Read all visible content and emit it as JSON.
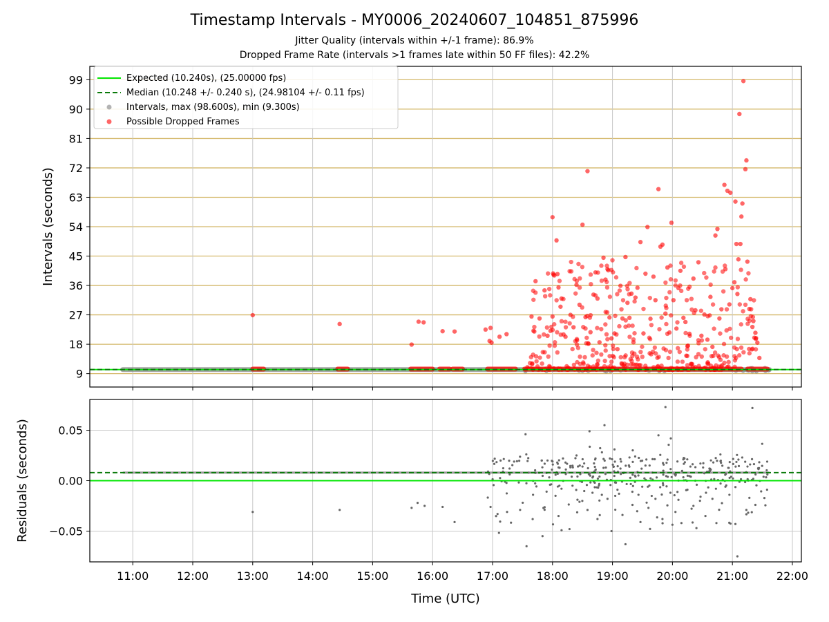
{
  "chart_data": {
    "type": "scatter",
    "title": "Timestamp Intervals - MY0006_20240607_104851_875996",
    "subtitle_1": "Jitter Quality (intervals within +/-1 frame): 86.9%",
    "subtitle_2": "Dropped Frame Rate (intervals >1 frames late within 50 FF files): 42.2%",
    "xlabel": "Time (UTC)",
    "xticks": [
      "11:00",
      "12:00",
      "13:00",
      "14:00",
      "15:00",
      "16:00",
      "17:00",
      "18:00",
      "19:00",
      "20:00",
      "21:00",
      "22:00"
    ],
    "xlim": [
      "10:17",
      "22:09"
    ],
    "grid": true,
    "panels": [
      {
        "name": "intervals",
        "ylabel": "Intervals (seconds)",
        "ylim": [
          4.9,
          103.1
        ],
        "yticks": [
          9,
          18,
          27,
          36,
          45,
          54,
          63,
          72,
          81,
          90,
          99
        ],
        "legend_position": "top-left",
        "legend": [
          "Expected (10.240s), (25.00000 fps)",
          "Median (10.248 +/- 0.240 s), (24.98104 +/- 0.11 fps)",
          "Intervals, max (98.600s), min (9.300s)",
          "Possible Dropped Frames"
        ],
        "expected_interval": 10.24,
        "median_interval": 10.248,
        "interval_max": 98.6,
        "interval_min": 9.3,
        "normal_intervals_range": [
          "10:50",
          "21:37"
        ],
        "dropped_frames": [
          {
            "time": "13:00",
            "value": 26.9
          },
          {
            "time": "14:27",
            "value": 24.2
          },
          {
            "time": "15:39",
            "value": 17.9
          },
          {
            "time": "15:46",
            "value": 24.9
          },
          {
            "time": "15:51",
            "value": 24.7
          },
          {
            "time": "16:10",
            "value": 22.0
          },
          {
            "time": "16:22",
            "value": 21.9
          },
          {
            "time": "16:53",
            "value": 22.5
          },
          {
            "time": "16:58",
            "value": 23.0
          },
          {
            "time": "16:57",
            "value": 19.0
          },
          {
            "time": "16:59",
            "value": 18.5
          },
          {
            "time": "17:07",
            "value": 20.3
          },
          {
            "time": "17:14",
            "value": 21.1
          },
          {
            "time": "17:39",
            "value": 26.5
          },
          {
            "time": "17:43",
            "value": 37.3
          },
          {
            "time": "17:47",
            "value": 25.9
          },
          {
            "time": "17:52",
            "value": 34.5
          },
          {
            "time": "17:55",
            "value": 20.6
          },
          {
            "time": "17:58",
            "value": 22.1
          },
          {
            "time": "18:00",
            "value": 56.9
          },
          {
            "time": "18:01",
            "value": 39.3
          },
          {
            "time": "18:00",
            "value": 26.5
          },
          {
            "time": "18:04",
            "value": 49.8
          },
          {
            "time": "18:05",
            "value": 39.5
          },
          {
            "time": "18:06",
            "value": 35.4
          },
          {
            "time": "18:08",
            "value": 29.5
          },
          {
            "time": "18:09",
            "value": 32.0
          },
          {
            "time": "18:11",
            "value": 21.0
          },
          {
            "time": "18:13",
            "value": 20.3
          },
          {
            "time": "18:18",
            "value": 27.0
          },
          {
            "time": "18:21",
            "value": 23.2
          },
          {
            "time": "18:24",
            "value": 36.2
          },
          {
            "time": "18:27",
            "value": 30.1
          },
          {
            "time": "18:30",
            "value": 54.6
          },
          {
            "time": "18:33",
            "value": 26.3
          },
          {
            "time": "18:35",
            "value": 71.0
          },
          {
            "time": "18:38",
            "value": 21.7
          },
          {
            "time": "18:41",
            "value": 33.2
          },
          {
            "time": "18:43",
            "value": 40.0
          },
          {
            "time": "18:45",
            "value": 32.0
          },
          {
            "time": "18:47",
            "value": 18.6
          },
          {
            "time": "18:51",
            "value": 44.5
          },
          {
            "time": "18:53",
            "value": 37.8
          },
          {
            "time": "18:55",
            "value": 41.0
          },
          {
            "time": "18:57",
            "value": 26.2
          },
          {
            "time": "18:59",
            "value": 19.8
          },
          {
            "time": "19:02",
            "value": 21.3
          },
          {
            "time": "19:05",
            "value": 16.5
          },
          {
            "time": "19:08",
            "value": 35.9
          },
          {
            "time": "19:10",
            "value": 25.9
          },
          {
            "time": "19:13",
            "value": 44.7
          },
          {
            "time": "19:15",
            "value": 30.7
          },
          {
            "time": "19:17",
            "value": 26.1
          },
          {
            "time": "19:19",
            "value": 33.5
          },
          {
            "time": "19:21",
            "value": 18.6
          },
          {
            "time": "19:23",
            "value": 32.3
          },
          {
            "time": "19:25",
            "value": 35.3
          },
          {
            "time": "19:28",
            "value": 49.3
          },
          {
            "time": "19:31",
            "value": 21.3
          },
          {
            "time": "19:33",
            "value": 39.6
          },
          {
            "time": "19:35",
            "value": 53.9
          },
          {
            "time": "19:38",
            "value": 25.8
          },
          {
            "time": "19:41",
            "value": 38.7
          },
          {
            "time": "19:43",
            "value": 31.5
          },
          {
            "time": "19:46",
            "value": 65.5
          },
          {
            "time": "19:48",
            "value": 47.9
          },
          {
            "time": "19:50",
            "value": 48.5
          },
          {
            "time": "19:53",
            "value": 27.4
          },
          {
            "time": "19:55",
            "value": 41.5
          },
          {
            "time": "19:57",
            "value": 21.6
          },
          {
            "time": "19:59",
            "value": 55.2
          },
          {
            "time": "20:01",
            "value": 31.5
          },
          {
            "time": "20:04",
            "value": 22.8
          },
          {
            "time": "20:06",
            "value": 35.2
          },
          {
            "time": "20:08",
            "value": 40.5
          },
          {
            "time": "20:11",
            "value": 26.1
          },
          {
            "time": "20:13",
            "value": 24.8
          },
          {
            "time": "20:15",
            "value": 17.4
          },
          {
            "time": "20:17",
            "value": 21.2
          },
          {
            "time": "20:21",
            "value": 38.1
          },
          {
            "time": "20:23",
            "value": 28.4
          },
          {
            "time": "20:26",
            "value": 43.1
          },
          {
            "time": "20:29",
            "value": 20.6
          },
          {
            "time": "20:32",
            "value": 27.1
          },
          {
            "time": "20:35",
            "value": 19.4
          },
          {
            "time": "20:38",
            "value": 32.5
          },
          {
            "time": "20:40",
            "value": 17.2
          },
          {
            "time": "20:43",
            "value": 51.3
          },
          {
            "time": "20:45",
            "value": 53.3
          },
          {
            "time": "20:47",
            "value": 25.9
          },
          {
            "time": "20:49",
            "value": 28.7
          },
          {
            "time": "20:52",
            "value": 66.8
          },
          {
            "time": "20:53",
            "value": 41.0
          },
          {
            "time": "20:55",
            "value": 65.0
          },
          {
            "time": "20:57",
            "value": 30.2
          },
          {
            "time": "20:58",
            "value": 64.4
          },
          {
            "time": "21:00",
            "value": 35.2
          },
          {
            "time": "21:02",
            "value": 37.0
          },
          {
            "time": "21:03",
            "value": 61.7
          },
          {
            "time": "21:04",
            "value": 48.7
          },
          {
            "time": "21:05",
            "value": 33.4
          },
          {
            "time": "21:06",
            "value": 44.0
          },
          {
            "time": "21:07",
            "value": 88.5
          },
          {
            "time": "21:08",
            "value": 48.7
          },
          {
            "time": "21:09",
            "value": 57.1
          },
          {
            "time": "21:10",
            "value": 61.1
          },
          {
            "time": "21:11",
            "value": 98.6
          },
          {
            "time": "21:13",
            "value": 71.6
          },
          {
            "time": "21:14",
            "value": 74.3
          },
          {
            "time": "21:15",
            "value": 43.3
          },
          {
            "time": "21:17",
            "value": 28.8
          },
          {
            "time": "21:18",
            "value": 31.8
          },
          {
            "time": "21:20",
            "value": 23.3
          },
          {
            "time": "21:21",
            "value": 25.1
          },
          {
            "time": "21:22",
            "value": 20.0
          },
          {
            "time": "21:23",
            "value": 21.5
          },
          {
            "time": "21:25",
            "value": 18.5
          },
          {
            "time": "21:27",
            "value": 13.8
          }
        ]
      },
      {
        "name": "residuals",
        "ylabel": "Residuals (seconds)",
        "ylim": [
          -0.0805,
          0.0805
        ],
        "ytick_labels": [
          "−0.05",
          "0.00",
          "0.05"
        ],
        "expected_residual": 0.0,
        "median_residual": 0.008,
        "baseline_residual_range": [
          "10:50",
          "21:37"
        ],
        "scattered_residuals": [
          {
            "time": "13:00",
            "value": -0.031
          },
          {
            "time": "14:27",
            "value": -0.029
          },
          {
            "time": "15:39",
            "value": -0.027
          },
          {
            "time": "15:45",
            "value": -0.022
          },
          {
            "time": "15:52",
            "value": -0.025
          },
          {
            "time": "16:10",
            "value": -0.026
          },
          {
            "time": "16:22",
            "value": -0.041
          },
          {
            "time": "16:58",
            "value": -0.026
          },
          {
            "time": "17:05",
            "value": -0.033
          },
          {
            "time": "17:33",
            "value": 0.046
          },
          {
            "time": "17:34",
            "value": -0.065
          },
          {
            "time": "17:50",
            "value": -0.055
          },
          {
            "time": "17:55",
            "value": 0.02
          },
          {
            "time": "18:00",
            "value": 0.019
          },
          {
            "time": "18:03",
            "value": -0.015
          },
          {
            "time": "18:06",
            "value": -0.035
          },
          {
            "time": "18:09",
            "value": -0.008
          },
          {
            "time": "18:13",
            "value": 0.018
          },
          {
            "time": "18:17",
            "value": -0.048
          },
          {
            "time": "18:20",
            "value": -0.005
          },
          {
            "time": "18:24",
            "value": 0.025
          },
          {
            "time": "18:27",
            "value": -0.021
          },
          {
            "time": "18:30",
            "value": 0.014
          },
          {
            "time": "18:35",
            "value": -0.029
          },
          {
            "time": "18:37",
            "value": 0.049
          },
          {
            "time": "18:40",
            "value": -0.012
          },
          {
            "time": "18:43",
            "value": 0.022
          },
          {
            "time": "18:45",
            "value": -0.038
          },
          {
            "time": "18:47",
            "value": 0.004
          },
          {
            "time": "18:52",
            "value": 0.055
          },
          {
            "time": "18:55",
            "value": -0.018
          },
          {
            "time": "18:59",
            "value": -0.05
          },
          {
            "time": "19:02",
            "value": 0.031
          },
          {
            "time": "19:05",
            "value": -0.009
          },
          {
            "time": "19:08",
            "value": 0.012
          },
          {
            "time": "19:10",
            "value": -0.034
          },
          {
            "time": "19:13",
            "value": -0.063
          },
          {
            "time": "19:17",
            "value": 0.023
          },
          {
            "time": "19:20",
            "value": -0.024
          },
          {
            "time": "19:23",
            "value": 0.004
          },
          {
            "time": "19:26",
            "value": -0.014
          },
          {
            "time": "19:28",
            "value": -0.041
          },
          {
            "time": "19:33",
            "value": 0.015
          },
          {
            "time": "19:36",
            "value": -0.027
          },
          {
            "time": "19:40",
            "value": 0.008
          },
          {
            "time": "19:43",
            "value": -0.018
          },
          {
            "time": "19:46",
            "value": 0.045
          },
          {
            "time": "19:50",
            "value": -0.038
          },
          {
            "time": "19:53",
            "value": 0.073
          },
          {
            "time": "19:58",
            "value": -0.012
          },
          {
            "time": "20:03",
            "value": -0.031
          },
          {
            "time": "20:05",
            "value": 0.019
          },
          {
            "time": "20:06",
            "value": -0.019
          },
          {
            "time": "20:09",
            "value": -0.042
          },
          {
            "time": "20:12",
            "value": 0.022
          },
          {
            "time": "20:15",
            "value": -0.009
          },
          {
            "time": "20:18",
            "value": 0.014
          },
          {
            "time": "20:21",
            "value": -0.025
          },
          {
            "time": "20:24",
            "value": -0.047
          },
          {
            "time": "20:28",
            "value": 0.017
          },
          {
            "time": "20:33",
            "value": -0.035
          },
          {
            "time": "20:37",
            "value": 0.012
          },
          {
            "time": "20:40",
            "value": -0.018
          },
          {
            "time": "20:44",
            "value": -0.042
          },
          {
            "time": "20:48",
            "value": 0.026
          },
          {
            "time": "20:53",
            "value": -0.006
          },
          {
            "time": "20:57",
            "value": -0.014
          },
          {
            "time": "21:03",
            "value": -0.043
          },
          {
            "time": "21:05",
            "value": -0.075
          },
          {
            "time": "21:14",
            "value": -0.029
          },
          {
            "time": "21:17",
            "value": -0.017
          },
          {
            "time": "21:20",
            "value": 0.072
          },
          {
            "time": "21:23",
            "value": -0.024
          }
        ]
      }
    ],
    "colors": {
      "expected_line": "#00e600",
      "median_line": "#0a7a0a",
      "intervals_points": "#808080",
      "dropped_frames": "#ff0000",
      "hgrid_top": "#d4b86a",
      "grid": "#c8c8c8"
    }
  }
}
